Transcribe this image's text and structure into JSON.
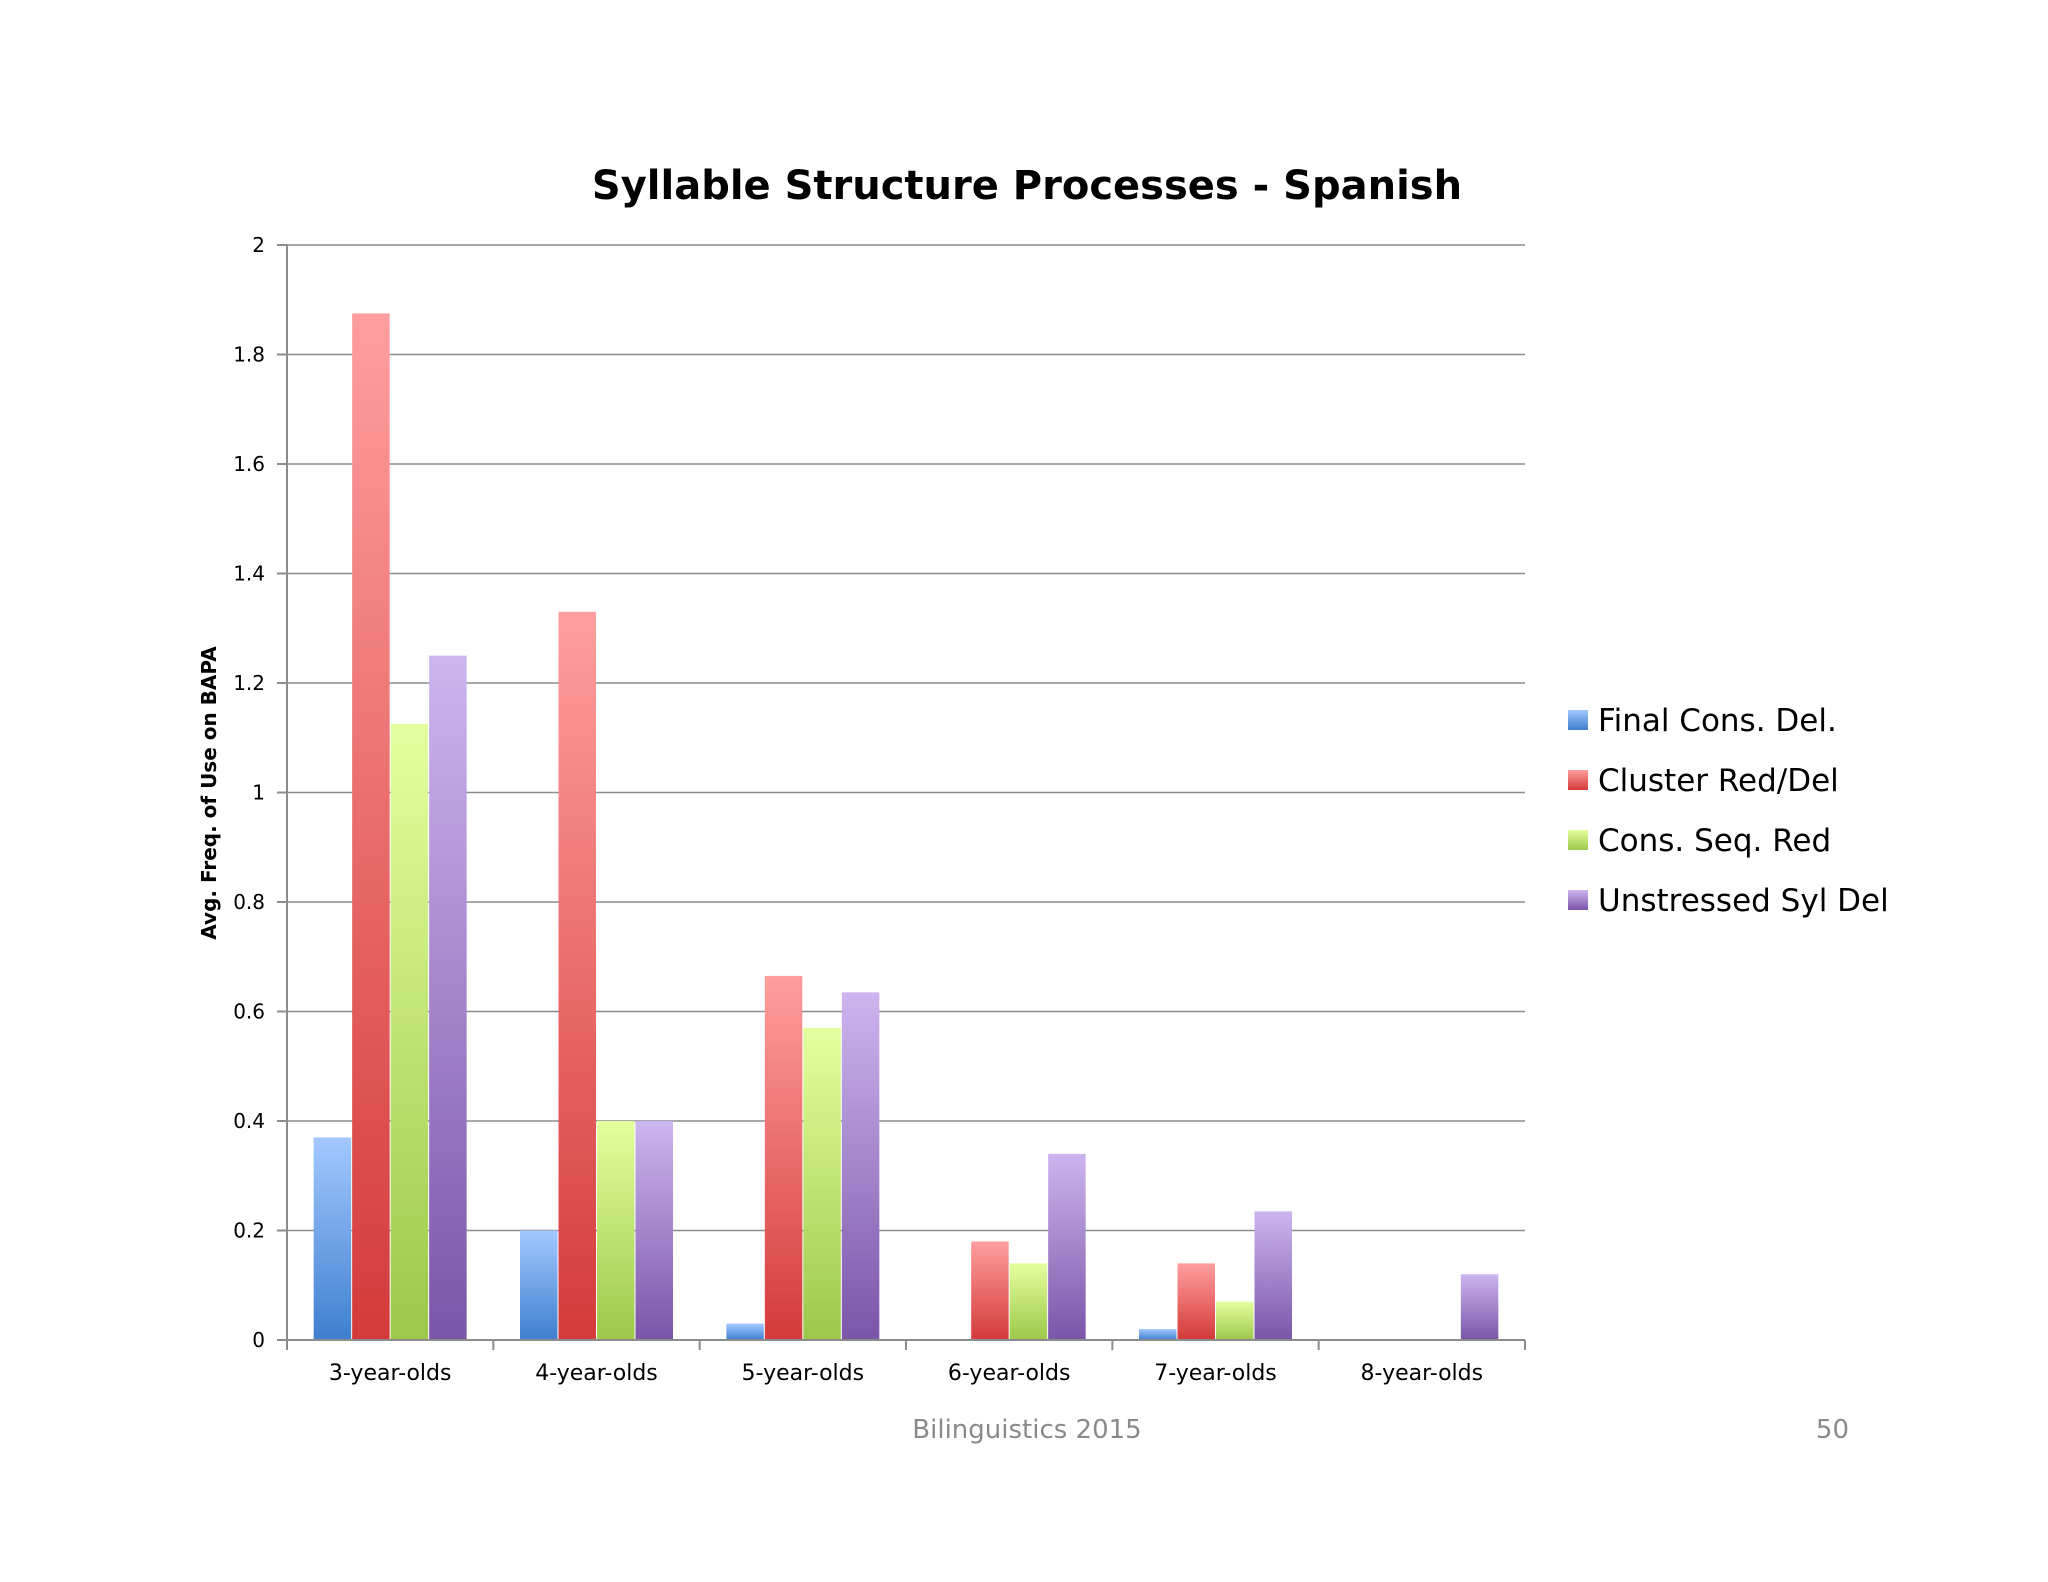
{
  "chart_data": {
    "type": "bar",
    "title": "Syllable Structure Processes - Spanish",
    "xlabel": "",
    "ylabel": "Avg. Freq. of Use on BAPA",
    "ylim": [
      0,
      2
    ],
    "yticks": [
      "0",
      "0.2",
      "0.4",
      "0.6",
      "0.8",
      "1",
      "1.2",
      "1.4",
      "1.6",
      "1.8",
      "2"
    ],
    "grid": true,
    "legend_position": "right",
    "categories": [
      "3-year-olds",
      "4-year-olds",
      "5-year-olds",
      "6-year-olds",
      "7-year-olds",
      "8-year-olds"
    ],
    "series": [
      {
        "name": "Final Cons. Del.",
        "values": [
          0.37,
          0.2,
          0.03,
          0,
          0.02,
          0
        ],
        "color_top": "#a3c9ff",
        "color_bottom": "#3f7fcf"
      },
      {
        "name": "Cluster Red/Del",
        "values": [
          1.875,
          1.33,
          0.665,
          0.18,
          0.14,
          0
        ],
        "color_top": "#ff9e9e",
        "color_bottom": "#d43a3a"
      },
      {
        "name": "Cons. Seq. Red",
        "values": [
          1.125,
          0.4,
          0.57,
          0.14,
          0.07,
          0
        ],
        "color_top": "#e4ff9e",
        "color_bottom": "#9cc84a"
      },
      {
        "name": "Unstressed Syl Del",
        "values": [
          1.25,
          0.4,
          0.635,
          0.34,
          0.235,
          0.12
        ],
        "color_top": "#cdb5ef",
        "color_bottom": "#7b55a8"
      }
    ]
  },
  "footer": {
    "text": "Bilinguistics 2015",
    "page_number": "50"
  }
}
